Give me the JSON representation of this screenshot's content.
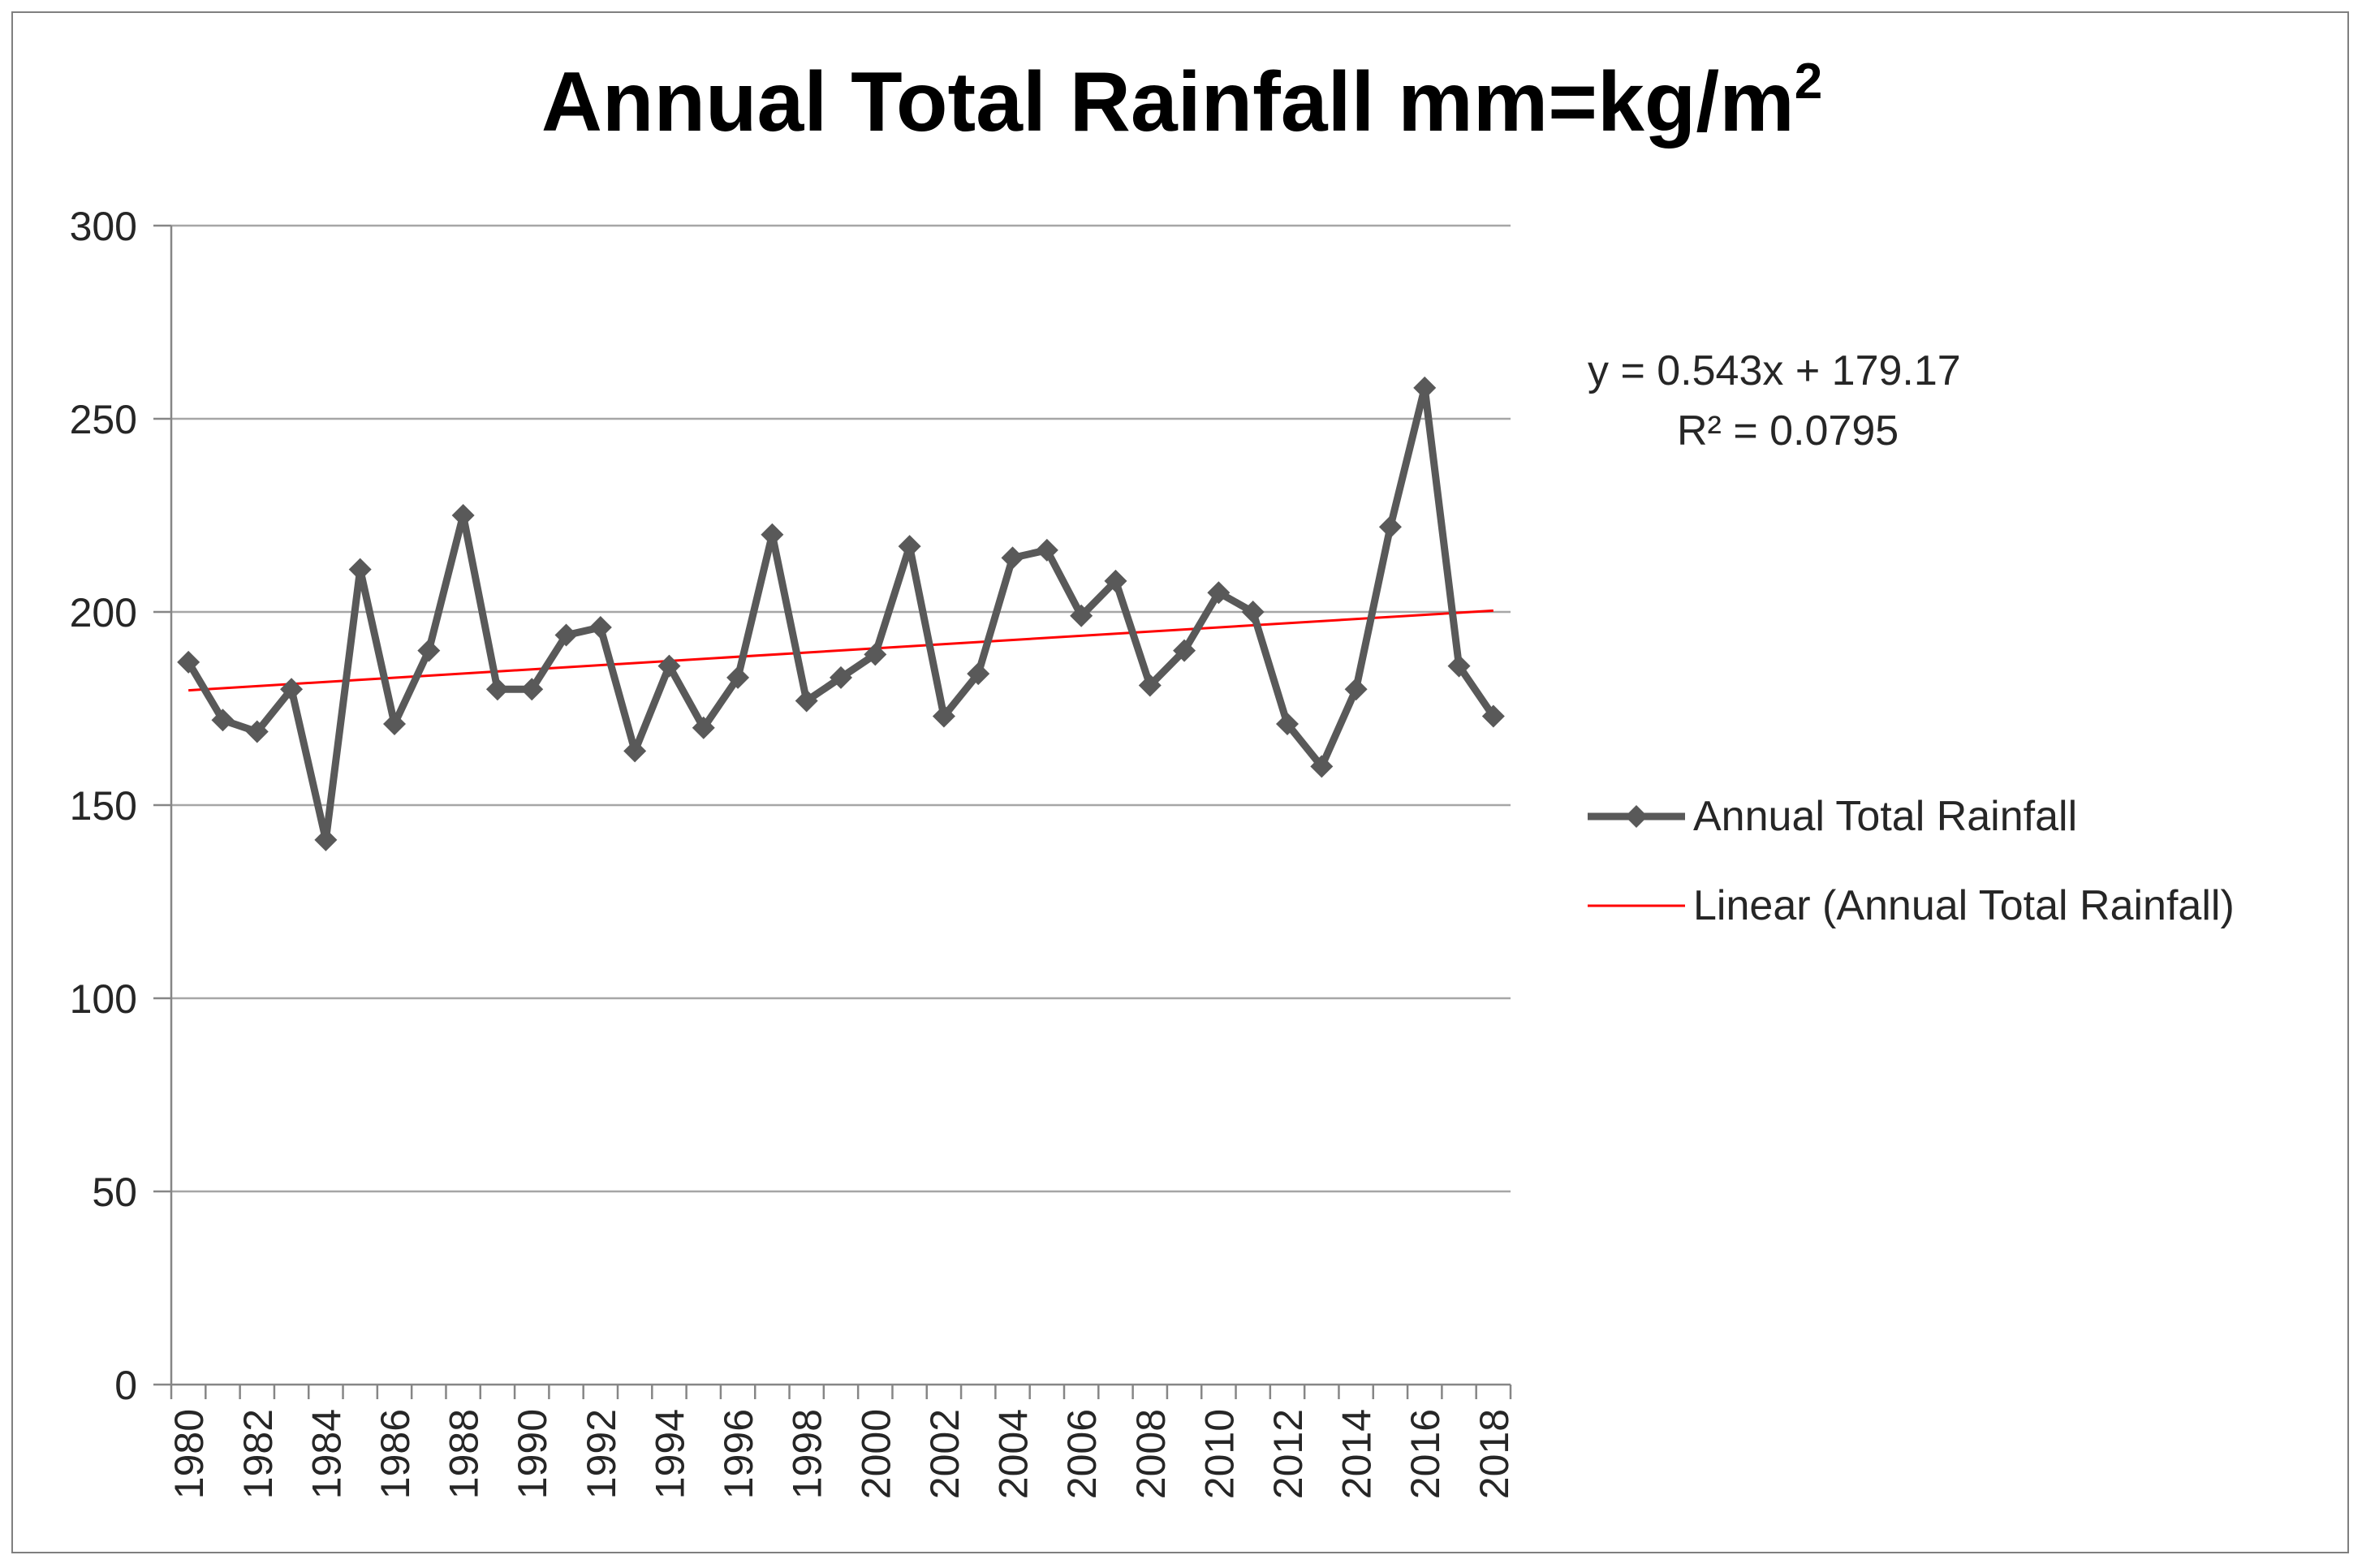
{
  "chart_data": {
    "type": "line",
    "title": "Annual Total Rainfall mm=kg/m",
    "title_superscript": "2",
    "xlabel": "",
    "ylabel": "",
    "ylim": [
      0,
      300
    ],
    "yticks": [
      0,
      50,
      100,
      150,
      200,
      250,
      300
    ],
    "x": [
      1980,
      1981,
      1982,
      1983,
      1984,
      1985,
      1986,
      1987,
      1988,
      1989,
      1990,
      1991,
      1992,
      1993,
      1994,
      1995,
      1996,
      1997,
      1998,
      1999,
      2000,
      2001,
      2002,
      2003,
      2004,
      2005,
      2006,
      2007,
      2008,
      2009,
      2010,
      2011,
      2012,
      2013,
      2014,
      2015,
      2016,
      2017,
      2018
    ],
    "xtick_labels": [
      "1980",
      "1982",
      "1984",
      "1986",
      "1988",
      "1990",
      "1992",
      "1994",
      "1996",
      "1998",
      "2000",
      "2002",
      "2004",
      "2006",
      "2008",
      "2010",
      "2012",
      "2014",
      "2016",
      "2018"
    ],
    "series": [
      {
        "name": "Annual Total Rainfall",
        "color": "#595959",
        "marker": "diamond",
        "values": [
          187,
          172,
          169,
          180,
          141,
          211,
          171,
          190,
          225,
          180,
          180,
          194,
          196,
          164,
          186,
          170,
          183,
          220,
          177,
          183,
          189,
          217,
          173,
          184,
          214,
          216,
          199,
          208,
          181,
          190,
          205,
          200,
          171,
          160,
          180,
          222,
          258,
          186,
          173
        ]
      },
      {
        "name": "Linear (Annual Total Rainfall)",
        "color": "#ff0000",
        "type": "trendline",
        "slope": 0.543,
        "intercept": 179.17
      }
    ],
    "trendline_equation": "y = 0.543x + 179.17",
    "r_squared_label": "R² = 0.0795",
    "grid": true,
    "legend_position": "right"
  }
}
